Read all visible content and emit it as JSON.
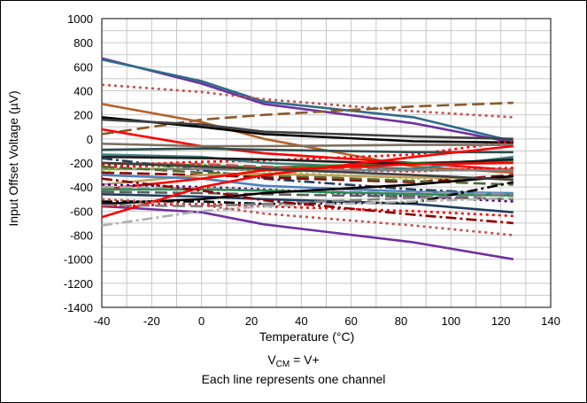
{
  "chart_data": {
    "type": "line",
    "title": "",
    "xlabel": "Temperature (°C)",
    "ylabel": "Input Offset Voltage (µV)",
    "xlim": [
      -40,
      140
    ],
    "ylim": [
      -1400,
      1000
    ],
    "x_ticks": [
      "-40",
      "-20",
      "0",
      "20",
      "40",
      "60",
      "80",
      "100",
      "120",
      "140"
    ],
    "y_ticks": [
      "1000",
      "800",
      "600",
      "400",
      "200",
      "0",
      "-200",
      "-400",
      "-600",
      "-800",
      "-1000",
      "-1200",
      "-1400"
    ],
    "grid": true,
    "legend": "none",
    "x": [
      -40,
      0,
      25,
      85,
      125
    ],
    "series": [
      {
        "color": "#7030a0",
        "style": "solid",
        "values": [
          670,
          460,
          290,
          130,
          -30
        ]
      },
      {
        "color": "#2e6b8a",
        "style": "solid",
        "values": [
          660,
          480,
          310,
          180,
          -20
        ]
      },
      {
        "color": "#7030a0",
        "style": "solid",
        "values": [
          -560,
          -610,
          -710,
          -860,
          -1000
        ]
      },
      {
        "color": "#c0504d",
        "style": "dot",
        "values": [
          450,
          390,
          330,
          230,
          180
        ]
      },
      {
        "color": "#8b5a2b",
        "style": "dash",
        "values": [
          40,
          160,
          200,
          270,
          300
        ]
      },
      {
        "color": "#b5622a",
        "style": "solid",
        "values": [
          290,
          140,
          0,
          -230,
          -280
        ]
      },
      {
        "color": "#000000",
        "style": "solid",
        "values": [
          180,
          100,
          40,
          -20,
          -30
        ]
      },
      {
        "color": "#404040",
        "style": "solid",
        "values": [
          160,
          120,
          60,
          20,
          0
        ]
      },
      {
        "color": "#ff0000",
        "style": "solid",
        "values": [
          80,
          -60,
          -120,
          -200,
          -260
        ]
      },
      {
        "color": "#ff0000",
        "style": "dot",
        "values": [
          -220,
          -190,
          -180,
          -130,
          -20
        ]
      },
      {
        "color": "#7f6f5f",
        "style": "solid",
        "values": [
          -40,
          -60,
          -60,
          -50,
          -50
        ]
      },
      {
        "color": "#2f4f4f",
        "style": "solid",
        "values": [
          -90,
          -80,
          -90,
          -110,
          -110
        ]
      },
      {
        "color": "#3f7f7f",
        "style": "solid",
        "values": [
          -130,
          -150,
          -200,
          -250,
          -150
        ]
      },
      {
        "color": "#228b22",
        "style": "solid",
        "values": [
          -200,
          -220,
          -240,
          -200,
          -180
        ]
      },
      {
        "color": "#1f1f1f",
        "style": "solid",
        "values": [
          -150,
          -160,
          -170,
          -210,
          -170
        ]
      },
      {
        "color": "#c0504d",
        "style": "dash",
        "values": [
          -200,
          -210,
          -230,
          -260,
          -250
        ]
      },
      {
        "color": "#ff0000",
        "style": "dot",
        "values": [
          -230,
          -230,
          -250,
          -270,
          -240
        ]
      },
      {
        "color": "#1f3f5f",
        "style": "dashdot",
        "values": [
          -160,
          -260,
          -330,
          -420,
          -460
        ]
      },
      {
        "color": "#8b0000",
        "style": "dash",
        "values": [
          -280,
          -300,
          -320,
          -360,
          -300
        ]
      },
      {
        "color": "#808080",
        "style": "solid",
        "values": [
          -250,
          -250,
          -260,
          -260,
          -260
        ]
      },
      {
        "color": "#9acd32",
        "style": "dot",
        "values": [
          -260,
          -220,
          -270,
          -330,
          -330
        ]
      },
      {
        "color": "#556b2f",
        "style": "dash",
        "values": [
          -230,
          -280,
          -300,
          -350,
          -380
        ]
      },
      {
        "color": "#c0a060",
        "style": "solid",
        "values": [
          -380,
          -300,
          -290,
          -320,
          -330
        ]
      },
      {
        "color": "#4f81bd",
        "style": "solid",
        "values": [
          -300,
          -330,
          -390,
          -440,
          -450
        ]
      },
      {
        "color": "#ff0000",
        "style": "solid",
        "values": [
          -420,
          -330,
          -260,
          -210,
          -200
        ]
      },
      {
        "color": "#4b0082",
        "style": "dot",
        "values": [
          -380,
          -400,
          -420,
          -480,
          -520
        ]
      },
      {
        "color": "#a9a9a9",
        "style": "dash",
        "values": [
          -400,
          -410,
          -430,
          -450,
          -460
        ]
      },
      {
        "color": "#2e8b57",
        "style": "solid",
        "values": [
          -420,
          -420,
          -430,
          -460,
          -470
        ]
      },
      {
        "color": "#5f5f5f",
        "style": "dash",
        "values": [
          -440,
          -450,
          -460,
          -480,
          -500
        ]
      },
      {
        "color": "#1f3f5f",
        "style": "solid",
        "values": [
          -460,
          -480,
          -500,
          -540,
          -610
        ]
      },
      {
        "color": "#000000",
        "style": "dashdot",
        "values": [
          -520,
          -520,
          -540,
          -530,
          -360
        ]
      },
      {
        "color": "#000000",
        "style": "solid",
        "values": [
          -540,
          -500,
          -450,
          -380,
          -310
        ]
      },
      {
        "color": "#ff0000",
        "style": "dot",
        "values": [
          -560,
          -540,
          -560,
          -600,
          -640
        ]
      },
      {
        "color": "#ff0000",
        "style": "solid",
        "values": [
          -650,
          -400,
          -300,
          -150,
          -60
        ]
      },
      {
        "color": "#b0b0b0",
        "style": "dashdot",
        "values": [
          -720,
          -600,
          -560,
          -520,
          -490
        ]
      },
      {
        "color": "#808080",
        "style": "dash",
        "values": [
          -550,
          -560,
          -540,
          -490,
          -460
        ]
      },
      {
        "color": "#c0504d",
        "style": "dot",
        "values": [
          -500,
          -550,
          -620,
          -720,
          -800
        ]
      },
      {
        "color": "#8b0000",
        "style": "dashdot",
        "values": [
          -330,
          -430,
          -510,
          -630,
          -700
        ]
      },
      {
        "color": "#3f3f3f",
        "style": "solid",
        "values": [
          -200,
          -230,
          -250,
          -300,
          -340
        ]
      }
    ]
  },
  "footer": {
    "vcm_main": "V",
    "vcm_sub": "CM",
    "vcm_rest": " = V+",
    "note": "Each line represents one channel"
  }
}
